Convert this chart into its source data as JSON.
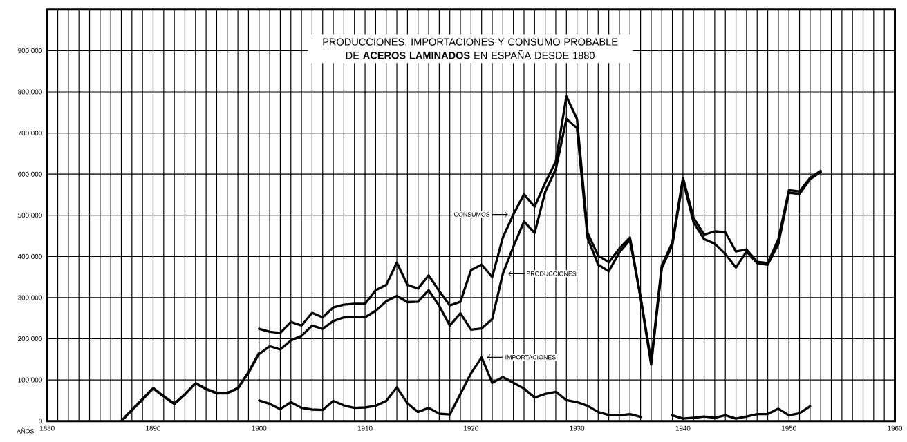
{
  "chart_data": {
    "type": "line",
    "title": "PRODUCCIONES, IMPORTACIONES Y CONSUMO PROBABLE DE **ACEROS LAMINADOS** EN ESPAÑA DESDE 1880",
    "xlabel": "AÑOS",
    "xlim": [
      1880,
      1960
    ],
    "ylim": [
      0,
      1000000
    ],
    "xticks": [
      1880,
      {
        "value": 1881,
        "label": null
      },
      {
        "value": 1882,
        "label": null
      },
      {
        "value": 1883,
        "label": null
      },
      {
        "value": 1884,
        "label": null
      },
      {
        "value": 1885,
        "label": null
      },
      {
        "value": 1886,
        "label": null
      },
      {
        "value": 1887,
        "label": null
      },
      {
        "value": 1888,
        "label": null
      },
      {
        "value": 1889,
        "label": null
      },
      1890,
      {
        "value": 1891,
        "label": null
      },
      {
        "value": 1892,
        "label": null
      },
      {
        "value": 1893,
        "label": null
      },
      {
        "value": 1894,
        "label": null
      },
      {
        "value": 1895,
        "label": null
      },
      {
        "value": 1896,
        "label": null
      },
      {
        "value": 1897,
        "label": null
      },
      {
        "value": 1898,
        "label": null
      },
      {
        "value": 1899,
        "label": null
      },
      1900,
      {
        "value": 1901,
        "label": null
      },
      {
        "value": 1902,
        "label": null
      },
      {
        "value": 1903,
        "label": null
      },
      {
        "value": 1904,
        "label": null
      },
      {
        "value": 1905,
        "label": null
      },
      {
        "value": 1906,
        "label": null
      },
      {
        "value": 1907,
        "label": null
      },
      {
        "value": 1908,
        "label": null
      },
      {
        "value": 1909,
        "label": null
      },
      1910,
      {
        "value": 1911,
        "label": null
      },
      {
        "value": 1912,
        "label": null
      },
      {
        "value": 1913,
        "label": null
      },
      {
        "value": 1914,
        "label": null
      },
      {
        "value": 1915,
        "label": null
      },
      {
        "value": 1916,
        "label": null
      },
      {
        "value": 1917,
        "label": null
      },
      {
        "value": 1918,
        "label": null
      },
      {
        "value": 1919,
        "label": null
      },
      1920,
      {
        "value": 1921,
        "label": null
      },
      {
        "value": 1922,
        "label": null
      },
      {
        "value": 1923,
        "label": null
      },
      {
        "value": 1924,
        "label": null
      },
      {
        "value": 1925,
        "label": null
      },
      {
        "value": 1926,
        "label": null
      },
      {
        "value": 1927,
        "label": null
      },
      {
        "value": 1928,
        "label": null
      },
      {
        "value": 1929,
        "label": null
      },
      1930,
      {
        "value": 1931,
        "label": null
      },
      {
        "value": 1932,
        "label": null
      },
      {
        "value": 1933,
        "label": null
      },
      {
        "value": 1934,
        "label": null
      },
      {
        "value": 1935,
        "label": null
      },
      {
        "value": 1936,
        "label": null
      },
      {
        "value": 1937,
        "label": null
      },
      {
        "value": 1938,
        "label": null
      },
      {
        "value": 1939,
        "label": null
      },
      1940,
      {
        "value": 1941,
        "label": null
      },
      {
        "value": 1942,
        "label": null
      },
      {
        "value": 1943,
        "label": null
      },
      {
        "value": 1944,
        "label": null
      },
      {
        "value": 1945,
        "label": null
      },
      {
        "value": 1946,
        "label": null
      },
      {
        "value": 1947,
        "label": null
      },
      {
        "value": 1948,
        "label": null
      },
      {
        "value": 1949,
        "label": null
      },
      1950,
      {
        "value": 1951,
        "label": null
      },
      {
        "value": 1952,
        "label": null
      },
      {
        "value": 1953,
        "label": null
      },
      {
        "value": 1954,
        "label": null
      },
      {
        "value": 1955,
        "label": null
      },
      {
        "value": 1956,
        "label": null
      },
      {
        "value": 1957,
        "label": null
      },
      {
        "value": 1958,
        "label": null
      },
      {
        "value": 1959,
        "label": null
      },
      1960
    ],
    "yticks": [
      0,
      {
        "value": 100000,
        "label": "100.000"
      },
      {
        "value": 200000,
        "label": "200.000"
      },
      {
        "value": 300000,
        "label": "300.000"
      },
      {
        "value": 400000,
        "label": "400.000"
      },
      {
        "value": 500000,
        "label": "500.000"
      },
      {
        "value": 600000,
        "label": "600.000"
      },
      {
        "value": 700000,
        "label": "700.000"
      },
      {
        "value": 800000,
        "label": "800.000"
      },
      {
        "value": 900000,
        "label": "900.000"
      }
    ],
    "grid": true,
    "series": [
      {
        "color": "#000000",
        "line_style": "dotted",
        "x": [
          1887,
          1888,
          1889,
          1890,
          1891,
          1892,
          1893,
          1894,
          1895,
          1896,
          1897,
          1898,
          1899,
          1900
        ],
        "values": [
          0,
          27000,
          53000,
          80000,
          60000,
          42000,
          65000,
          92000,
          78000,
          68000,
          68000,
          80000,
          118000,
          165000
        ]
      },
      {
        "color": "#000000",
        "line_style": "solid",
        "x": [
          1900,
          1901,
          1902,
          1903,
          1904,
          1905,
          1906,
          1907,
          1908,
          1909,
          1910,
          1911,
          1912,
          1913,
          1914,
          1915,
          1916,
          1917,
          1918,
          1919,
          1920,
          1921,
          1922,
          1923,
          1924,
          1925,
          1926,
          1927,
          1928,
          1929,
          1930,
          1931,
          1932,
          1933,
          1934,
          1935,
          1936,
          1937,
          1938,
          1939,
          1940,
          1941,
          1942,
          1943,
          1944,
          1945,
          1946,
          1947,
          1948,
          1949,
          1950,
          1951,
          1952,
          1953
        ],
        "values": [
          224000,
          217000,
          214000,
          241000,
          232000,
          263000,
          252000,
          276000,
          283000,
          285000,
          285000,
          318000,
          331000,
          385000,
          331000,
          322000,
          354000,
          316000,
          281000,
          290000,
          367000,
          380000,
          350000,
          446000,
          502000,
          551000,
          521000,
          579000,
          631000,
          789000,
          734000,
          457000,
          402000,
          386000,
          419000,
          446000,
          301000,
          146000,
          378000,
          434000,
          591000,
          494000,
          453000,
          461000,
          459000,
          412000,
          417000,
          387000,
          384000,
          442000,
          561000,
          558000,
          591000,
          608000
        ]
      },
      {
        "color": "#000000",
        "line_style": "solid",
        "x": [
          1900,
          1901,
          1902,
          1903,
          1904,
          1905,
          1906,
          1907,
          1908,
          1909,
          1910,
          1911,
          1912,
          1913,
          1914,
          1915,
          1916,
          1917,
          1918,
          1919,
          1920,
          1921,
          1922,
          1923,
          1924,
          1925,
          1926,
          1927,
          1928,
          1929,
          1930,
          1931,
          1932,
          1933,
          1934,
          1935,
          1936,
          1937,
          1938,
          1939,
          1940,
          1941,
          1942,
          1943,
          1944,
          1945,
          1946,
          1947,
          1948,
          1949,
          1950,
          1951,
          1952,
          1953
        ],
        "values": [
          163000,
          182000,
          174000,
          196000,
          207000,
          232000,
          224000,
          243000,
          252000,
          253000,
          252000,
          268000,
          291000,
          304000,
          289000,
          290000,
          318000,
          280000,
          232000,
          262000,
          222000,
          225000,
          248000,
          358000,
          424000,
          485000,
          457000,
          557000,
          612000,
          734000,
          712000,
          445000,
          380000,
          364000,
          410000,
          440000,
          300000,
          137000,
          372000,
          428000,
          585000,
          483000,
          442000,
          431000,
          406000,
          373000,
          412000,
          384000,
          380000,
          430000,
          555000,
          552000,
          588000,
          605000
        ]
      },
      {
        "color": "#000000",
        "line_style": "solid",
        "x": [
          1900,
          1901,
          1902,
          1903,
          1904,
          1905,
          1906,
          1907,
          1908,
          1909,
          1910,
          1911,
          1912,
          1913,
          1914,
          1915,
          1916,
          1917,
          1918,
          1919,
          1920,
          1921,
          1922,
          1923,
          1924,
          1925,
          1926,
          1927,
          1928,
          1929,
          1930,
          1931,
          1932,
          1933,
          1934,
          1935,
          1936,
          1937,
          1938,
          1939,
          1940,
          1941,
          1942,
          1943,
          1944,
          1945,
          1946,
          1947,
          1948,
          1949,
          1950,
          1951,
          1952
        ],
        "values": [
          50000,
          42000,
          29000,
          46000,
          32000,
          28000,
          27000,
          49000,
          38000,
          32000,
          33000,
          37000,
          49000,
          82000,
          43000,
          22000,
          32000,
          18000,
          16000,
          66000,
          116000,
          155000,
          93000,
          107000,
          93000,
          79000,
          57000,
          66000,
          71000,
          51000,
          46000,
          37000,
          22000,
          15000,
          14000,
          17000,
          10000,
          null,
          null,
          14000,
          6000,
          8000,
          11000,
          8000,
          14000,
          6000,
          11000,
          17000,
          17000,
          30000,
          14000,
          19000,
          36000
        ]
      }
    ],
    "annotations": [
      "CONSUMOS",
      "PRODUCCIONES",
      "IMPORTACIONES"
    ]
  }
}
